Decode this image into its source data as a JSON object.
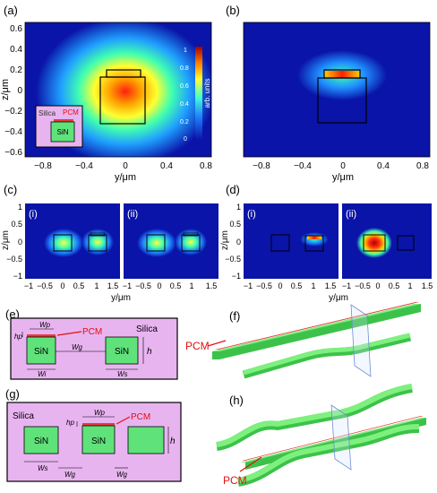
{
  "colors": {
    "field_bg": "#0a14a8",
    "silica_fill": "#e8b4f0",
    "sin_fill": "#5fe27a",
    "pcm_fill": "#e83a3a",
    "waveguide_top": "#7ef07e",
    "waveguide_side": "#3cc24a"
  },
  "panel_labels": {
    "a": "(a)",
    "b": "(b)",
    "c": "(c)",
    "d": "(d)",
    "e": "(e)",
    "f": "(f)",
    "g": "(g)",
    "h": "(h)"
  },
  "subpanel_labels": {
    "i": "(i)",
    "ii": "(ii)"
  },
  "axes_ab": {
    "x_label": "y/μm",
    "y_label": "z/μm",
    "x_ticks": [
      "−0.8",
      "−0.4",
      "0",
      "0.4",
      "0.8"
    ],
    "y_ticks": [
      "0.6",
      "0.4",
      "0.2",
      "0",
      "−0.2",
      "−0.4",
      "−0.6"
    ]
  },
  "axes_cd": {
    "x_label": "y/μm",
    "y_label": "z/μm",
    "x_ticks": [
      "−1",
      "−0.5",
      "0",
      "0.5",
      "1",
      "1.5"
    ],
    "y_ticks": [
      "1",
      "0.5",
      "0",
      "−0.5",
      "−1"
    ]
  },
  "colorbar": {
    "label": "arb. units",
    "ticks": [
      "1",
      "0.8",
      "0.6",
      "0.4",
      "0.2",
      "0"
    ]
  },
  "inset_a": {
    "silica": "Silica",
    "pcm": "PCM",
    "sin": "SiN"
  },
  "panel_e": {
    "silica": "Silica",
    "pcm": "PCM",
    "sin": "SiN",
    "dims": {
      "wp": "Wp",
      "wg": "Wg",
      "wi": "Wi",
      "ws": "Ws",
      "h": "h",
      "hp": "hp"
    }
  },
  "panel_g": {
    "silica": "Silica",
    "pcm": "PCM",
    "sin": "SiN",
    "dims": {
      "wp": "Wp",
      "wg": "Wg",
      "ws": "Ws",
      "h": "h",
      "hp": "hp"
    }
  },
  "panel_f": {
    "pcm": "PCM"
  },
  "panel_h": {
    "pcm": "PCM"
  }
}
